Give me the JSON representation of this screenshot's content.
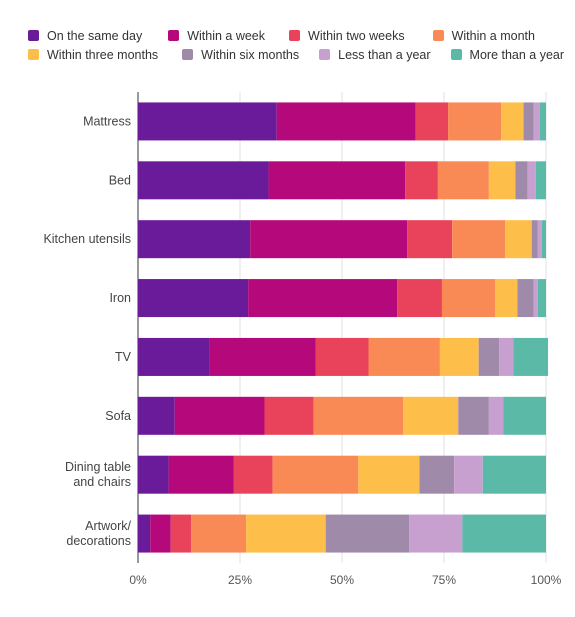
{
  "chart_data": {
    "type": "bar",
    "orientation": "horizontal",
    "stacked": true,
    "normalized": true,
    "categories": [
      "Mattress",
      "Bed",
      "Kitchen utensils",
      "Iron",
      "TV",
      "Sofa",
      "Dining table and chairs",
      "Artwork/ decorations"
    ],
    "series": [
      {
        "name": "On the same day",
        "color": "#6a1b9a",
        "values": [
          34,
          32,
          27.5,
          27,
          17.5,
          9,
          7.5,
          3
        ]
      },
      {
        "name": "Within a week",
        "color": "#b5087a",
        "values": [
          34,
          33.5,
          38.5,
          36.5,
          26,
          22,
          16,
          5
        ]
      },
      {
        "name": "Within two weeks",
        "color": "#e8435a",
        "values": [
          8,
          8,
          11,
          11,
          13,
          12,
          9.5,
          5
        ]
      },
      {
        "name": "Within a month",
        "color": "#fa8a55",
        "values": [
          13,
          12.5,
          13,
          13,
          17.5,
          22,
          21,
          13.5
        ]
      },
      {
        "name": "Within three months",
        "color": "#fdbe4a",
        "values": [
          5.5,
          6.5,
          6.5,
          5.5,
          9.5,
          13.5,
          15,
          19.5
        ]
      },
      {
        "name": "Within six months",
        "color": "#a08aaa",
        "values": [
          2.5,
          3,
          1.5,
          4,
          5,
          7.5,
          8.5,
          20.5
        ]
      },
      {
        "name": "Less than a year",
        "color": "#c8a0d0",
        "values": [
          1.5,
          2,
          1,
          1,
          3.5,
          3.5,
          7,
          13
        ]
      },
      {
        "name": "More than a year",
        "color": "#5bb9a8",
        "values": [
          1.5,
          2.5,
          1,
          2,
          8.5,
          10.5,
          15.5,
          20.5
        ]
      }
    ],
    "x_ticks": [
      "0%",
      "25%",
      "50%",
      "75%",
      "100%"
    ],
    "xlim": [
      0,
      100
    ],
    "grid": true,
    "legend_position": "top"
  }
}
